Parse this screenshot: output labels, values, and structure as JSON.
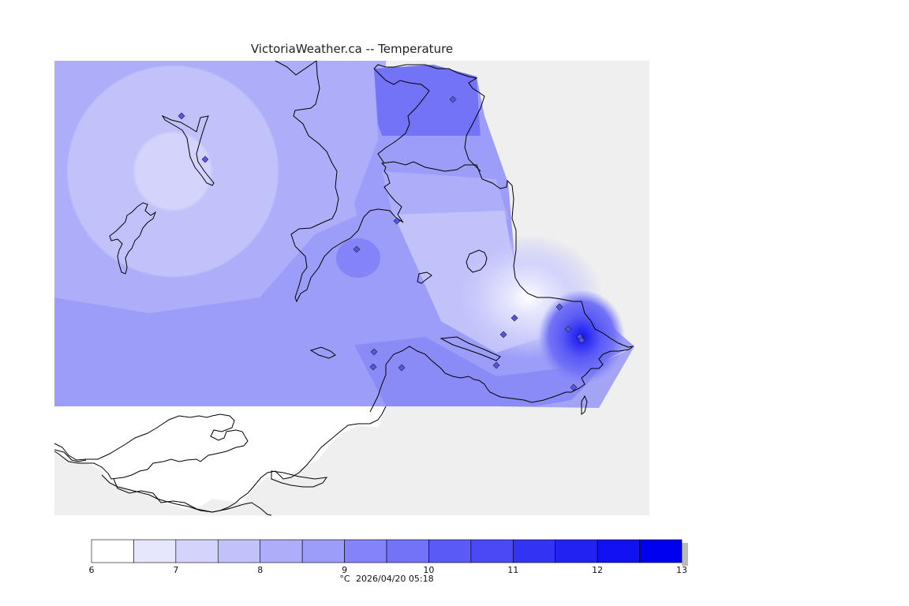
{
  "title": "VictoriaWeather.ca -- Temperature",
  "legend": {
    "unit": "°C",
    "timestamp": "2026/04/20 05:18",
    "ticks": [
      "6",
      "7",
      "8",
      "9",
      "10",
      "11",
      "12",
      "13"
    ],
    "colors": [
      "#ffffff",
      "#e6e6fd",
      "#d3d3fc",
      "#c2c2fb",
      "#adadfa",
      "#9c9cf9",
      "#8484f8",
      "#7373f7",
      "#5a5af6",
      "#4949f5",
      "#3333f4",
      "#2222f3",
      "#1111f2",
      "#0000f1"
    ]
  },
  "colors": {
    "land_background": "#efefef",
    "shoreline": "#000000",
    "station_marker": "#5555ee"
  },
  "map": {
    "station_count": 16
  }
}
